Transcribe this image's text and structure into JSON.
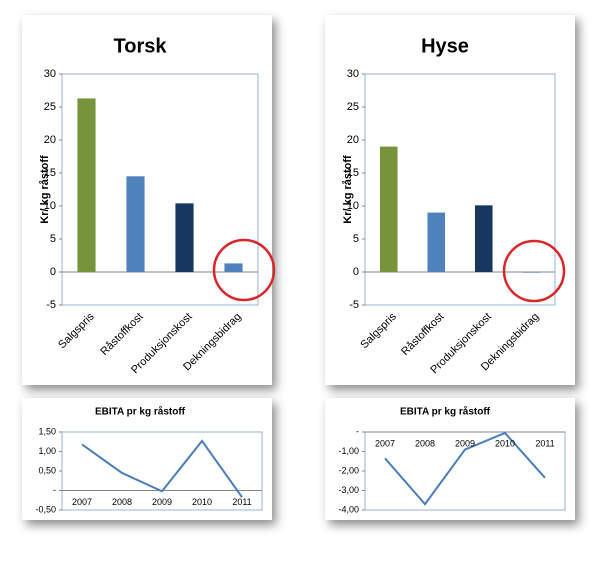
{
  "chart_data": [
    {
      "type": "bar",
      "title": "Torsk",
      "ylabel": "Kr/ kg råstoff",
      "categories": [
        "Salgspris",
        "Råstoffkost",
        "Produksjonskost",
        "Dekningsbidrag"
      ],
      "values": [
        26.3,
        14.5,
        10.4,
        1.3
      ],
      "colors": [
        "#77933c",
        "#4f81bd",
        "#17375e",
        "#4f81bd"
      ],
      "ylim": [
        -5,
        30
      ],
      "yticks": [
        -5,
        0,
        5,
        10,
        15,
        20,
        25,
        30
      ]
    },
    {
      "type": "bar",
      "title": "Hyse",
      "ylabel": "Kr/ kg råstoff",
      "categories": [
        "Salgspris",
        "Råstoffkost",
        "Produksjonskost",
        "Dekningsbidrag"
      ],
      "values": [
        19.0,
        9.0,
        10.1,
        -0.1
      ],
      "colors": [
        "#77933c",
        "#4f81bd",
        "#17375e",
        "#4f81bd"
      ],
      "ylim": [
        -5,
        30
      ],
      "yticks": [
        -5,
        0,
        5,
        10,
        15,
        20,
        25,
        30
      ]
    },
    {
      "type": "line",
      "title": "EBITA pr kg råstoff",
      "categories": [
        "2007",
        "2008",
        "2009",
        "2010",
        "2011"
      ],
      "values": [
        1.18,
        0.45,
        -0.02,
        1.27,
        -0.17
      ],
      "color": "#4a7ebb",
      "ylim": [
        -0.5,
        1.5
      ],
      "yticks": [
        {
          "value": -0.5,
          "label": "-0,50"
        },
        {
          "value": 0,
          "label": "-"
        },
        {
          "value": 0.5,
          "label": "0,50"
        },
        {
          "value": 1,
          "label": "1,00"
        },
        {
          "value": 1.5,
          "label": "1,50"
        }
      ]
    },
    {
      "type": "line",
      "title": "EBITA pr kg råstoff",
      "categories": [
        "2007",
        "2008",
        "2009",
        "2010",
        "2011"
      ],
      "values": [
        -1.35,
        -3.7,
        -0.9,
        -0.05,
        -2.35
      ],
      "color": "#4a7ebb",
      "ylim": [
        -4,
        0
      ],
      "yticks": [
        {
          "value": -4,
          "label": "-4,00"
        },
        {
          "value": -3,
          "label": "-3,00"
        },
        {
          "value": -2,
          "label": "-2,00"
        },
        {
          "value": -1,
          "label": "-1,00"
        },
        {
          "value": 0,
          "label": "-"
        }
      ]
    }
  ]
}
